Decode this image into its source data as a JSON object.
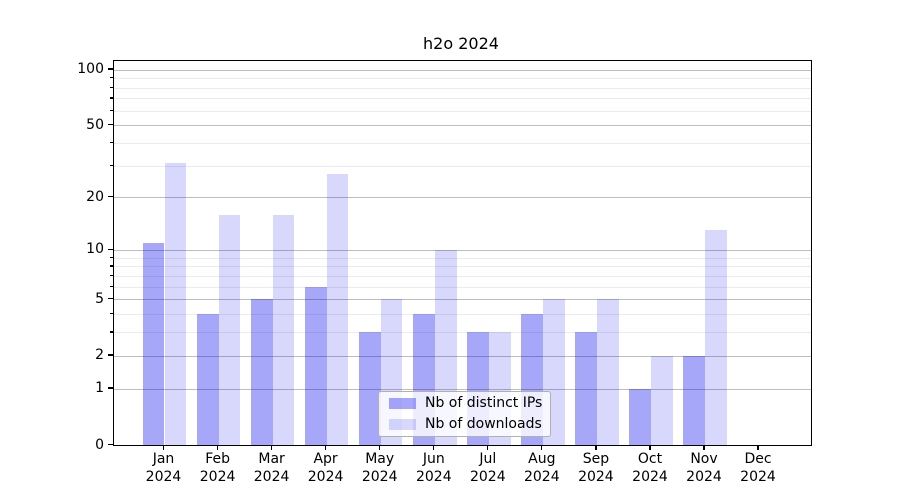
{
  "title": "h2o 2024",
  "chart_data": {
    "type": "bar",
    "title": "h2o 2024",
    "categories": [
      "Jan 2024",
      "Feb 2024",
      "Mar 2024",
      "Apr 2024",
      "May 2024",
      "Jun 2024",
      "Jul 2024",
      "Aug 2024",
      "Sep 2024",
      "Oct 2024",
      "Nov 2024",
      "Dec 2024"
    ],
    "series": [
      {
        "name": "Nb of distinct IPs",
        "color": "rgba(8,8,240,0.355)",
        "values": [
          11,
          4,
          5,
          6,
          3,
          4,
          3,
          4,
          3,
          1,
          2,
          0
        ]
      },
      {
        "name": "Nb of downloads",
        "color": "rgba(8,8,240,0.155)",
        "values": [
          31,
          16,
          16,
          27,
          5,
          10,
          3,
          5,
          5,
          2,
          13,
          0
        ]
      }
    ],
    "yscale": "log1p",
    "ylim": [
      0,
      112
    ],
    "yticks_major": [
      0,
      1,
      2,
      5,
      10,
      20,
      50,
      100
    ],
    "yticks_minor": [
      3,
      4,
      6,
      7,
      8,
      9,
      30,
      40,
      60,
      70,
      80,
      90
    ],
    "grid": "horizontal major+minor",
    "legend_position": "inside lower center-right"
  },
  "colors": {
    "bar_ips": "rgba(8,8,240,0.355)",
    "bar_downloads": "rgba(8,8,240,0.155)",
    "grid_major": "#bdbdbd",
    "grid_minor": "#ebebeb",
    "spine": "#000000",
    "legend_border": "#b0b0b0",
    "text": "#000000"
  }
}
